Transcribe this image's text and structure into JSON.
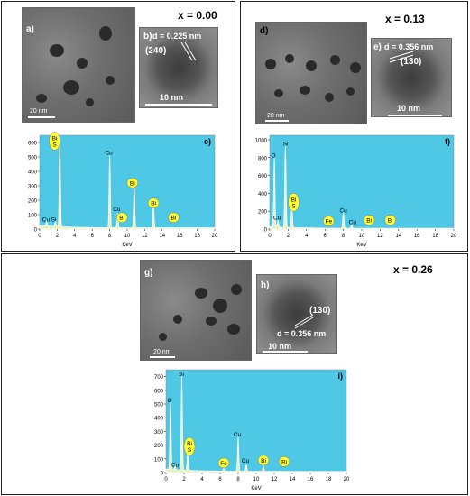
{
  "panels": {
    "top_left": {
      "x_value": "x = 0.00",
      "tem_label": "a)",
      "tem_scale": "20 nm",
      "hr_label": "b)",
      "hr_d": "d = 0.225 nm",
      "hr_hkl": "(240)",
      "hr_scale": "10 nm",
      "eds_label": "c)"
    },
    "top_right": {
      "x_value": "x = 0.13",
      "tem_label": "d)",
      "tem_scale": "20 nm",
      "hr_label": "e)",
      "hr_d": "d = 0.356 nm",
      "hr_hkl": "(130)",
      "hr_scale": "10 nm",
      "eds_label": "f)"
    },
    "bottom": {
      "x_value": "x = 0.26",
      "tem_label": "g)",
      "tem_scale": "20 nm",
      "hr_label": "h)",
      "hr_d": "d = 0.356 nm",
      "hr_hkl": "(130)",
      "hr_scale": "10 nm",
      "eds_label": "i)"
    }
  },
  "chart_data": [
    {
      "type": "line",
      "xlabel": "KeV",
      "ylabel": "",
      "xlim": [
        0,
        20
      ],
      "ylim": [
        0,
        650
      ],
      "xticks": [
        "0",
        "2",
        "4",
        "6",
        "8",
        "10",
        "12",
        "14",
        "16",
        "18",
        "20"
      ],
      "yticks": [
        "0",
        "100",
        "200",
        "300",
        "400",
        "500",
        "600"
      ],
      "peaks": [
        {
          "x": 0.8,
          "y": 40
        },
        {
          "x": 1.8,
          "y": 40
        },
        {
          "x": 2.3,
          "y": 600
        },
        {
          "x": 8.0,
          "y": 500
        },
        {
          "x": 8.9,
          "y": 100
        },
        {
          "x": 10.8,
          "y": 300
        },
        {
          "x": 13.0,
          "y": 160
        }
      ],
      "annotations": [
        {
          "text": "Bi\nS",
          "x": 1.7,
          "y": 610,
          "circled": true
        },
        {
          "text": "Cu",
          "x": 7.9,
          "y": 530,
          "circled": false
        },
        {
          "text": "Cu",
          "x": 8.8,
          "y": 140,
          "circled": false
        },
        {
          "text": "Cu",
          "x": 0.7,
          "y": 70,
          "circled": false
        },
        {
          "text": "Si",
          "x": 1.6,
          "y": 70,
          "circled": false
        },
        {
          "text": "Bi",
          "x": 10.6,
          "y": 320,
          "circled": true
        },
        {
          "text": "Bi",
          "x": 9.4,
          "y": 80,
          "circled": true
        },
        {
          "text": "Bi",
          "x": 13.0,
          "y": 180,
          "circled": true
        },
        {
          "text": "Bi",
          "x": 15.3,
          "y": 80,
          "circled": true
        }
      ]
    },
    {
      "type": "line",
      "xlabel": "KeV",
      "ylabel": "",
      "xlim": [
        0,
        20
      ],
      "ylim": [
        0,
        1050
      ],
      "xticks": [
        "0",
        "2",
        "4",
        "6",
        "8",
        "10",
        "12",
        "14",
        "16",
        "18",
        "20"
      ],
      "yticks": [
        "0",
        "200",
        "400",
        "600",
        "800",
        "1000"
      ],
      "peaks": [
        {
          "x": 0.5,
          "y": 780
        },
        {
          "x": 0.9,
          "y": 80
        },
        {
          "x": 1.7,
          "y": 920
        },
        {
          "x": 2.4,
          "y": 250
        },
        {
          "x": 8.0,
          "y": 180
        },
        {
          "x": 8.9,
          "y": 40
        }
      ],
      "annotations": [
        {
          "text": "O",
          "x": 0.4,
          "y": 830,
          "circled": false
        },
        {
          "text": "Si",
          "x": 1.7,
          "y": 960,
          "circled": false
        },
        {
          "text": "Cu",
          "x": 0.8,
          "y": 130,
          "circled": false
        },
        {
          "text": "Bi\nS",
          "x": 2.6,
          "y": 300,
          "circled": true
        },
        {
          "text": "Fe",
          "x": 6.4,
          "y": 90,
          "circled": true
        },
        {
          "text": "Cu",
          "x": 8.0,
          "y": 210,
          "circled": false
        },
        {
          "text": "Cu",
          "x": 9.0,
          "y": 80,
          "circled": false
        },
        {
          "text": "Bi",
          "x": 10.8,
          "y": 100,
          "circled": true
        },
        {
          "text": "Bi",
          "x": 13.1,
          "y": 100,
          "circled": true
        }
      ]
    },
    {
      "type": "line",
      "xlabel": "KeV",
      "ylabel": "",
      "xlim": [
        0,
        20
      ],
      "ylim": [
        0,
        750
      ],
      "xticks": [
        "0",
        "2",
        "4",
        "6",
        "8",
        "10",
        "12",
        "14",
        "16",
        "18",
        "20"
      ],
      "yticks": [
        "0",
        "100",
        "200",
        "300",
        "400",
        "500",
        "600",
        "700"
      ],
      "peaks": [
        {
          "x": 0.5,
          "y": 490
        },
        {
          "x": 1.0,
          "y": 30
        },
        {
          "x": 1.75,
          "y": 690
        },
        {
          "x": 2.4,
          "y": 130
        },
        {
          "x": 6.4,
          "y": 20
        },
        {
          "x": 8.0,
          "y": 250
        },
        {
          "x": 8.9,
          "y": 50
        },
        {
          "x": 10.8,
          "y": 40
        }
      ],
      "annotations": [
        {
          "text": "O",
          "x": 0.4,
          "y": 530,
          "circled": false
        },
        {
          "text": "Si",
          "x": 1.7,
          "y": 720,
          "circled": false
        },
        {
          "text": "Cu",
          "x": 1.0,
          "y": 60,
          "circled": false
        },
        {
          "text": "Bi\nS",
          "x": 2.6,
          "y": 190,
          "circled": true
        },
        {
          "text": "Fe",
          "x": 6.4,
          "y": 70,
          "circled": true
        },
        {
          "text": "Cu",
          "x": 7.9,
          "y": 280,
          "circled": false
        },
        {
          "text": "Cu",
          "x": 8.8,
          "y": 90,
          "circled": false
        },
        {
          "text": "Bi",
          "x": 10.8,
          "y": 90,
          "circled": true
        },
        {
          "text": "Bi",
          "x": 13.1,
          "y": 80,
          "circled": true
        }
      ]
    }
  ],
  "colors": {
    "eds_bg": "#4fc8e6",
    "spectrum": "#ffffff",
    "spectrum_fill": "#e8f0c0",
    "circle_fill": "#ffff33"
  }
}
